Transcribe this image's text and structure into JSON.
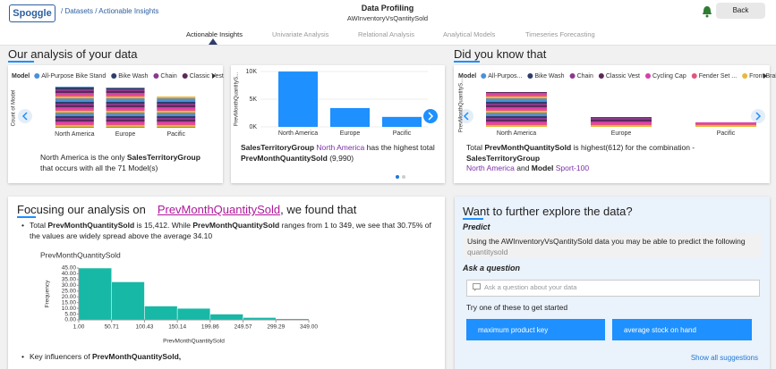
{
  "header": {
    "logo": "Spoggle",
    "breadcrumb": [
      "/ Datasets",
      "/ Actionable Insights"
    ],
    "title": "Data Profiling",
    "subtitle": "AWInventoryVsQantitySold",
    "back": "Back"
  },
  "tabs": [
    "Actionable Insights",
    "Univariate Analysis",
    "Relational Analysis",
    "Analytical Models",
    "Timeseries Forecasting"
  ],
  "analysis_heading": "Our analysis of your data",
  "did_you_know_heading": "Did you know that",
  "cards": [
    {
      "chart": {
        "type": "stacked-bar",
        "legend_title": "Model",
        "legend": [
          {
            "name": "All-Purpose Bike Stand",
            "color": "#4a90d9"
          },
          {
            "name": "Bike Wash",
            "color": "#2d3d6b"
          },
          {
            "name": "Chain",
            "color": "#8b3a8b"
          },
          {
            "name": "Classic Vest",
            "color": "#5a2a5a"
          }
        ],
        "ylabel": "Count of Model",
        "categories": [
          "North America",
          "Europe",
          "Pacific"
        ],
        "values": [
          71,
          69,
          54
        ]
      },
      "insight": [
        "North America is the only",
        "SalesTerritoryGroup",
        "that occurs with all the 71 Model(s)"
      ]
    },
    {
      "chart": {
        "type": "bar",
        "ylabel": "PrevMonthQuantityS...",
        "categories": [
          "North America",
          "Europe",
          "Pacific"
        ],
        "values": [
          9990,
          3400,
          1800
        ],
        "color": "#1e90ff",
        "ylim": [
          0,
          10000
        ],
        "yticks": [
          {
            "value": 0,
            "label": "0K"
          },
          {
            "value": 5000,
            "label": "5K"
          },
          {
            "value": 10000,
            "label": "10K"
          }
        ]
      },
      "insight": [
        "SalesTerritoryGroup",
        "North America",
        "has the highest total",
        "PrevMonthQuantitySold",
        "(9,990)"
      ]
    },
    {
      "chart": {
        "type": "stacked-bar",
        "legend_title": "Model",
        "legend": [
          {
            "name": "All-Purpos...",
            "color": "#4a90d9"
          },
          {
            "name": "Bike Wash",
            "color": "#2d3d6b"
          },
          {
            "name": "Chain",
            "color": "#8b3a8b"
          },
          {
            "name": "Classic Vest",
            "color": "#5a2a5a"
          },
          {
            "name": "Cycling Cap",
            "color": "#d63fa8"
          },
          {
            "name": "Fender Set ...",
            "color": "#e2557b"
          },
          {
            "name": "Front Brakes",
            "color": "#e8b93a"
          }
        ],
        "ylabel": "PrevMonthQuantityS...",
        "categories": [
          "North America",
          "Europe",
          "Pacific"
        ],
        "values": [
          9990,
          2800,
          1300
        ]
      },
      "insight": [
        "Total",
        "PrevMonthQuantitySold",
        "is highest(612) for the combination -",
        "SalesTerritoryGroup",
        "North America",
        "and",
        "Model",
        "Sport-100"
      ]
    }
  ],
  "focus": {
    "heading": [
      "Focusing our analysis on",
      "PrevMonthQuantitySold",
      ", we found that"
    ],
    "bullets": [
      [
        "Total",
        "PrevMonthQuantitySold",
        "is 15,412. While",
        "PrevMonthQuantitySold",
        "ranges from 1 to 349, we see that 30.75% of the values are widely spread above the average 34.10"
      ],
      [
        "Key influencers of",
        "PrevMonthQuantitySold,"
      ]
    ],
    "histogram": {
      "type": "histogram",
      "title": "PrevMonthQuantitySold",
      "xlabel": "PrevMonthQuantitySold",
      "ylabel": "Frequency",
      "color": "#17b8a6",
      "bins": [
        1,
        50.71,
        100.43,
        150.14,
        199.86,
        249.57,
        299.29,
        349
      ],
      "values": [
        45,
        33,
        12,
        10,
        5,
        2,
        1
      ],
      "xlim": [
        1,
        349
      ],
      "ylim": [
        0,
        45
      ],
      "xticks": [
        {
          "value": 1,
          "label": "1.00"
        },
        50.71,
        100.43,
        150.14,
        199.86,
        249.57,
        299.29,
        {
          "value": 349,
          "label": "349.00"
        }
      ],
      "yticks": [
        {
          "value": 0,
          "label": "0.00"
        },
        {
          "value": 5,
          "label": "5.00"
        },
        {
          "value": 10,
          "label": "10.00"
        },
        {
          "value": 15,
          "label": "15.00"
        },
        {
          "value": 20,
          "label": "20.00"
        },
        {
          "value": 25,
          "label": "25.00"
        },
        {
          "value": 30,
          "label": "30.00"
        },
        {
          "value": 35,
          "label": "35.00"
        },
        {
          "value": 40,
          "label": "40.00"
        },
        {
          "value": 45,
          "label": "45.00"
        }
      ]
    }
  },
  "explore": {
    "heading": "Want to further explore the data?",
    "predict_label": "Predict",
    "predict_text": "Using the AWInventoryVsQantitySold data you may be able to predict the following",
    "predict_target": "quantitysold",
    "ask_label": "Ask a question",
    "ask_placeholder": "Ask a question about your data",
    "try_label": "Try one of these to get started",
    "suggestions": [
      "maximum product key",
      "average stock on hand"
    ],
    "show_all": "Show all suggestions"
  }
}
